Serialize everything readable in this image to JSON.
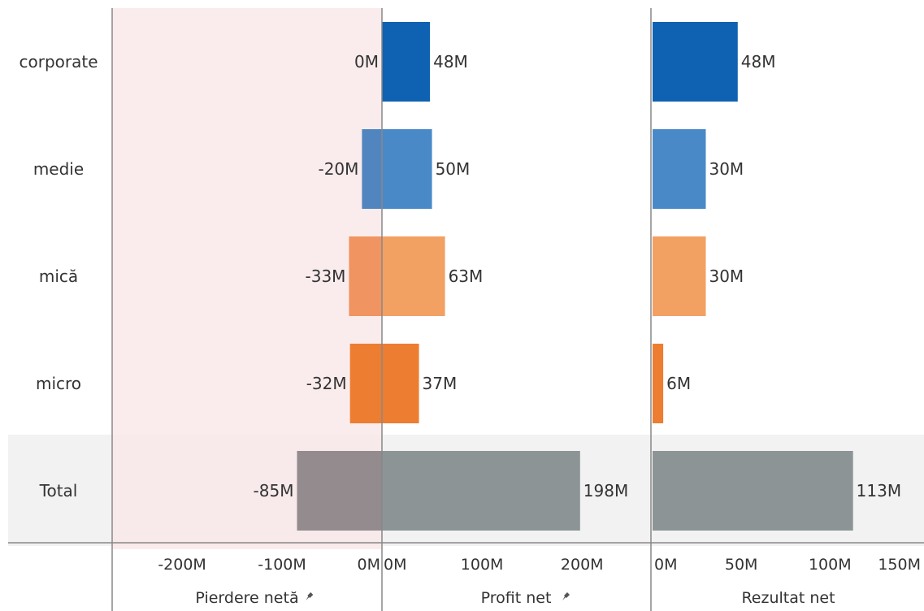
{
  "chart_data": {
    "type": "bar",
    "orientation": "horizontal",
    "categories": [
      "corporate",
      "medie",
      "mică",
      "micro",
      "Total"
    ],
    "value_suffix": "M",
    "panels": [
      {
        "name": "Pierdere netă",
        "pinned": true,
        "values": [
          0,
          -20,
          -33,
          -32,
          -85
        ],
        "labels": [
          "0M",
          "-20M",
          "-33M",
          "-32M",
          "-85M"
        ],
        "xlim": [
          -270,
          0
        ],
        "ticks": [
          -200,
          -100,
          0
        ],
        "tick_labels": [
          "-200M",
          "-100M",
          "0M"
        ],
        "shaded": true
      },
      {
        "name": "Profit net",
        "pinned": true,
        "values": [
          48,
          50,
          63,
          37,
          198
        ],
        "labels": [
          "48M",
          "50M",
          "63M",
          "37M",
          "198M"
        ],
        "xlim": [
          0,
          268
        ],
        "ticks": [
          0,
          100,
          200
        ],
        "tick_labels": [
          "0M",
          "100M",
          "200M"
        ]
      },
      {
        "name": "Rezultat net",
        "pinned": false,
        "values": [
          48,
          30,
          30,
          6,
          113
        ],
        "labels": [
          "48M",
          "30M",
          "30M",
          "6M",
          "113M"
        ],
        "xlim": [
          0,
          153
        ],
        "ticks": [
          0,
          50,
          100,
          150
        ],
        "tick_labels": [
          "0M",
          "50M",
          "100M",
          "150M"
        ]
      }
    ],
    "colors": {
      "corporate": "#0f61b2",
      "medie": "#4a89c8",
      "mica": "#f3a063",
      "micro": "#ed7d31",
      "total": "#8c9496",
      "medie_loss": "#5185bf",
      "mica_loss": "#f09461",
      "total_loss": "#948b8f",
      "loss_panel_bg": "#f9e9ea",
      "total_row_bg": "#f2f2f2",
      "axis": "#888888"
    },
    "grid": false,
    "legend": "none"
  }
}
